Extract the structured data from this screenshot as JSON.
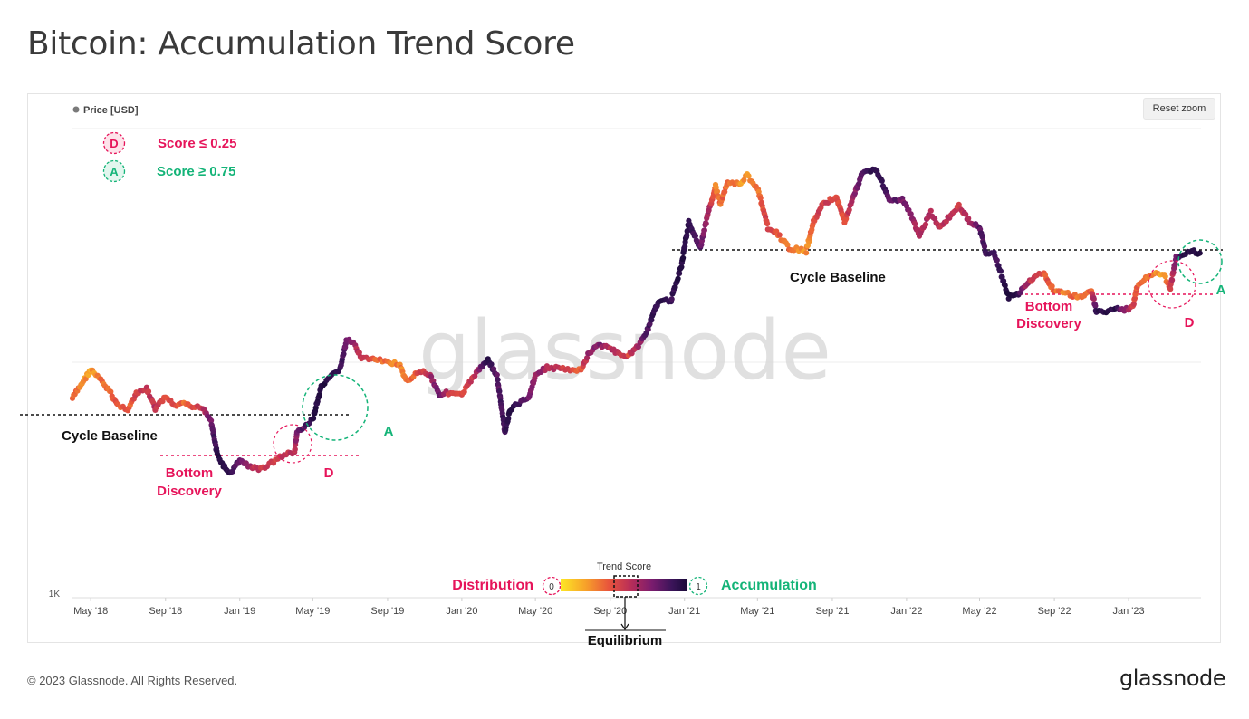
{
  "title": "Bitcoin: Accumulation Trend Score",
  "reset_zoom": "Reset zoom",
  "footer": {
    "copyright": "© 2023 Glassnode. All Rights Reserved.",
    "logo": "glassnode"
  },
  "watermark": "glassnode",
  "colors": {
    "distribution": "#e6145a",
    "accumulation": "#14b478",
    "baseline": "#111111"
  },
  "chart_data": {
    "type": "scatter",
    "title": "Bitcoin: Accumulation Trend Score",
    "legend": [
      {
        "name": "Price [USD]",
        "color": "#7a7a7a",
        "placement": "top-left"
      }
    ],
    "y_scale": "log",
    "y_tick_labels": [
      "1K"
    ],
    "x_tick_labels": [
      "May '18",
      "Sep '18",
      "Jan '19",
      "May '19",
      "Sep '19",
      "Jan '20",
      "May '20",
      "Sep '20",
      "Jan '21",
      "May '21",
      "Sep '21",
      "Jan '22",
      "May '22",
      "Sep '22",
      "Jan '23"
    ],
    "x_range": [
      "2018-04-01",
      "2023-04-30"
    ],
    "y_range": [
      1000,
      80000
    ],
    "color_scale": {
      "title": "Trend Score",
      "min_label": "0",
      "max_label": "1",
      "min_text": "Distribution",
      "max_text": "Accumulation",
      "mid_text": "Equilibrium",
      "stops": [
        "#fde725",
        "#f7a02a",
        "#e8543c",
        "#b92e58",
        "#7a1c6e",
        "#3a1459",
        "#1a0a38"
      ]
    },
    "score_legend": [
      {
        "badge": "D",
        "text": "Score ≤ 0.25",
        "color": "#e6145a"
      },
      {
        "badge": "A",
        "text": "Score ≥ 0.75",
        "color": "#14b478"
      }
    ],
    "annotations": {
      "cycle_baseline": "Cycle Baseline",
      "bottom_discovery_1": "Bottom",
      "bottom_discovery_2": "Discovery",
      "d": "D",
      "a": "A"
    },
    "series": [
      {
        "name": "Price [USD]",
        "points": [
          [
            "2018-04-01",
            7000,
            0.3
          ],
          [
            "2018-04-15",
            8000,
            0.25
          ],
          [
            "2018-05-01",
            9300,
            0.15
          ],
          [
            "2018-05-15",
            8500,
            0.25
          ],
          [
            "2018-06-01",
            7500,
            0.3
          ],
          [
            "2018-06-15",
            6500,
            0.35
          ],
          [
            "2018-07-01",
            6300,
            0.3
          ],
          [
            "2018-07-15",
            7300,
            0.4
          ],
          [
            "2018-08-01",
            7700,
            0.45
          ],
          [
            "2018-08-15",
            6300,
            0.5
          ],
          [
            "2018-09-01",
            7100,
            0.4
          ],
          [
            "2018-09-15",
            6500,
            0.35
          ],
          [
            "2018-10-01",
            6600,
            0.3
          ],
          [
            "2018-10-15",
            6400,
            0.35
          ],
          [
            "2018-11-01",
            6400,
            0.45
          ],
          [
            "2018-11-15",
            5600,
            0.7
          ],
          [
            "2018-11-25",
            4000,
            0.9
          ],
          [
            "2018-12-05",
            3600,
            0.95
          ],
          [
            "2018-12-15",
            3300,
            0.9
          ],
          [
            "2019-01-01",
            3800,
            0.75
          ],
          [
            "2019-01-15",
            3600,
            0.55
          ],
          [
            "2019-02-01",
            3450,
            0.45
          ],
          [
            "2019-02-15",
            3600,
            0.45
          ],
          [
            "2019-03-01",
            3800,
            0.4
          ],
          [
            "2019-03-15",
            4000,
            0.5
          ],
          [
            "2019-04-01",
            4100,
            0.45
          ],
          [
            "2019-04-05",
            5000,
            0.7
          ],
          [
            "2019-04-20",
            5300,
            0.85
          ],
          [
            "2019-05-01",
            5700,
            0.9
          ],
          [
            "2019-05-15",
            7800,
            0.95
          ],
          [
            "2019-06-01",
            8700,
            0.9
          ],
          [
            "2019-06-15",
            9400,
            0.85
          ],
          [
            "2019-06-26",
            12500,
            0.7
          ],
          [
            "2019-07-10",
            11800,
            0.55
          ],
          [
            "2019-07-20",
            10500,
            0.45
          ],
          [
            "2019-08-01",
            10300,
            0.4
          ],
          [
            "2019-08-15",
            10200,
            0.3
          ],
          [
            "2019-09-01",
            10000,
            0.25
          ],
          [
            "2019-09-20",
            9800,
            0.25
          ],
          [
            "2019-10-01",
            8300,
            0.25
          ],
          [
            "2019-10-26",
            9200,
            0.4
          ],
          [
            "2019-11-10",
            8800,
            0.55
          ],
          [
            "2019-11-25",
            7300,
            0.7
          ],
          [
            "2019-12-10",
            7400,
            0.45
          ],
          [
            "2020-01-01",
            7200,
            0.4
          ],
          [
            "2020-01-20",
            8700,
            0.45
          ],
          [
            "2020-02-13",
            10300,
            0.9
          ],
          [
            "2020-02-28",
            8700,
            0.75
          ],
          [
            "2020-03-12",
            5000,
            0.85
          ],
          [
            "2020-03-20",
            6200,
            0.9
          ],
          [
            "2020-04-01",
            6600,
            0.85
          ],
          [
            "2020-04-20",
            7100,
            0.7
          ],
          [
            "2020-05-01",
            8800,
            0.6
          ],
          [
            "2020-05-20",
            9500,
            0.55
          ],
          [
            "2020-06-15",
            9400,
            0.45
          ],
          [
            "2020-07-01",
            9200,
            0.4
          ],
          [
            "2020-07-15",
            9200,
            0.3
          ],
          [
            "2020-07-28",
            11000,
            0.6
          ],
          [
            "2020-08-15",
            11900,
            0.65
          ],
          [
            "2020-09-01",
            11500,
            0.5
          ],
          [
            "2020-09-15",
            10800,
            0.5
          ],
          [
            "2020-10-01",
            10700,
            0.4
          ],
          [
            "2020-10-20",
            12000,
            0.6
          ],
          [
            "2020-11-01",
            13800,
            0.8
          ],
          [
            "2020-11-20",
            18500,
            0.9
          ],
          [
            "2020-12-10",
            18500,
            0.85
          ],
          [
            "2020-12-27",
            26000,
            0.95
          ],
          [
            "2021-01-08",
            40000,
            0.9
          ],
          [
            "2021-01-27",
            31000,
            0.75
          ],
          [
            "2021-02-10",
            45000,
            0.55
          ],
          [
            "2021-02-21",
            57000,
            0.25
          ],
          [
            "2021-03-01",
            48000,
            0.3
          ],
          [
            "2021-03-13",
            60000,
            0.3
          ],
          [
            "2021-04-01",
            58000,
            0.2
          ],
          [
            "2021-04-14",
            63500,
            0.2
          ],
          [
            "2021-05-01",
            56000,
            0.25
          ],
          [
            "2021-05-19",
            37000,
            0.45
          ],
          [
            "2021-06-01",
            36000,
            0.35
          ],
          [
            "2021-06-22",
            31000,
            0.25
          ],
          [
            "2021-07-20",
            30000,
            0.2
          ],
          [
            "2021-08-01",
            40000,
            0.35
          ],
          [
            "2021-08-15",
            47000,
            0.45
          ],
          [
            "2021-09-07",
            52000,
            0.4
          ],
          [
            "2021-09-21",
            40000,
            0.35
          ],
          [
            "2021-10-20",
            65000,
            0.8
          ],
          [
            "2021-11-10",
            68000,
            0.9
          ],
          [
            "2021-11-25",
            57000,
            0.85
          ],
          [
            "2021-12-05",
            49000,
            0.75
          ],
          [
            "2021-12-25",
            50000,
            0.7
          ],
          [
            "2022-01-10",
            42000,
            0.6
          ],
          [
            "2022-01-22",
            35000,
            0.55
          ],
          [
            "2022-02-10",
            44000,
            0.55
          ],
          [
            "2022-02-25",
            38000,
            0.5
          ],
          [
            "2022-03-28",
            47000,
            0.45
          ],
          [
            "2022-04-15",
            40000,
            0.55
          ],
          [
            "2022-05-01",
            38000,
            0.75
          ],
          [
            "2022-05-12",
            29000,
            0.85
          ],
          [
            "2022-05-25",
            29500,
            0.8
          ],
          [
            "2022-06-18",
            19000,
            0.95
          ],
          [
            "2022-07-01",
            19500,
            0.9
          ],
          [
            "2022-07-15",
            21000,
            0.6
          ],
          [
            "2022-07-30",
            23500,
            0.4
          ],
          [
            "2022-08-15",
            24000,
            0.35
          ],
          [
            "2022-09-01",
            20000,
            0.3
          ],
          [
            "2022-09-15",
            20000,
            0.25
          ],
          [
            "2022-10-01",
            19300,
            0.3
          ],
          [
            "2022-10-20",
            19200,
            0.25
          ],
          [
            "2022-11-01",
            20500,
            0.3
          ],
          [
            "2022-11-09",
            16500,
            0.9
          ],
          [
            "2022-11-25",
            16400,
            0.95
          ],
          [
            "2022-12-10",
            17100,
            0.9
          ],
          [
            "2022-12-25",
            16800,
            0.6
          ],
          [
            "2023-01-08",
            17200,
            0.45
          ],
          [
            "2023-01-15",
            21000,
            0.3
          ],
          [
            "2023-02-01",
            23300,
            0.25
          ],
          [
            "2023-02-15",
            24500,
            0.2
          ],
          [
            "2023-03-01",
            23500,
            0.15
          ],
          [
            "2023-03-10",
            20500,
            0.4
          ],
          [
            "2023-03-20",
            28000,
            0.7
          ],
          [
            "2023-04-01",
            28500,
            0.9
          ],
          [
            "2023-04-15",
            30300,
            0.95
          ],
          [
            "2023-04-28",
            29400,
            0.95
          ]
        ]
      }
    ]
  }
}
